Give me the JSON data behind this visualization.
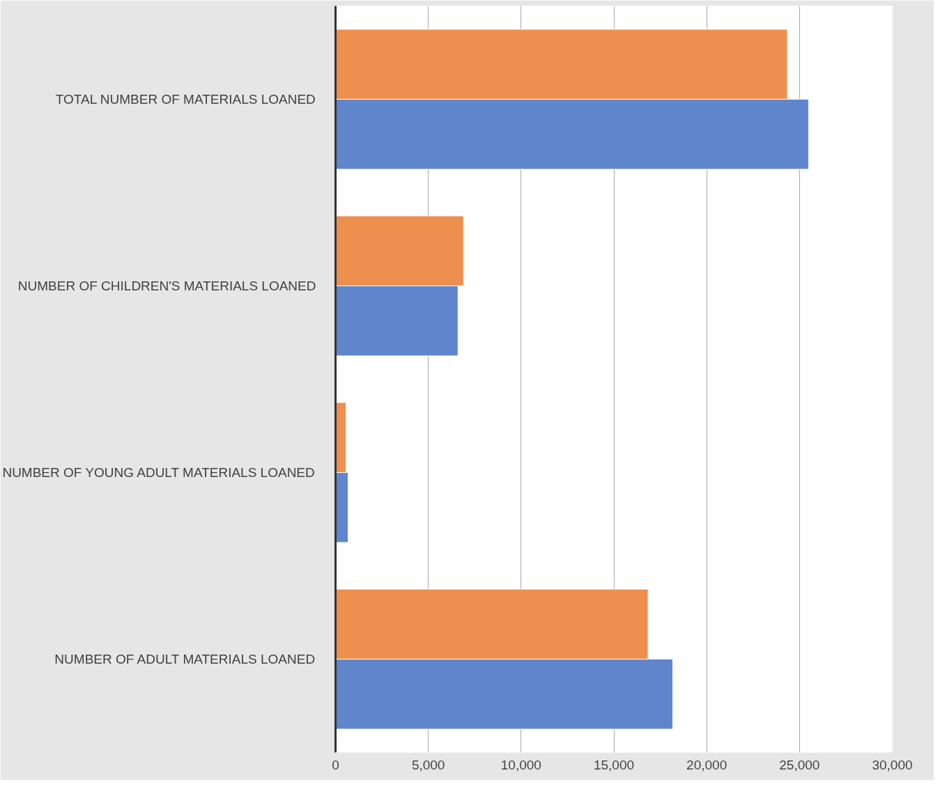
{
  "chart_data": {
    "type": "bar",
    "orientation": "horizontal",
    "categories": [
      "TOTAL NUMBER OF MATERIALS LOANED",
      "NUMBER OF CHILDREN'S MATERIALS LOANED",
      "NUMBER OF YOUNG ADULT MATERIALS LOANED",
      "NUMBER OF ADULT MATERIALS LOANED"
    ],
    "series": [
      {
        "color": "#ed8f4f",
        "values": [
          24350,
          6900,
          570,
          16840
        ]
      },
      {
        "color": "#5f86cd",
        "values": [
          25490,
          6600,
          680,
          18170
        ]
      }
    ],
    "xlim": [
      0,
      30000
    ],
    "xticks": [
      {
        "value": 0,
        "label": "0"
      },
      {
        "value": 5000,
        "label": "5,000"
      },
      {
        "value": 10000,
        "label": "10,000"
      },
      {
        "value": 15000,
        "label": "15,000"
      },
      {
        "value": 20000,
        "label": "20,000"
      },
      {
        "value": 25000,
        "label": "25,000"
      },
      {
        "value": 30000,
        "label": "30,000"
      }
    ],
    "grid": "x"
  }
}
